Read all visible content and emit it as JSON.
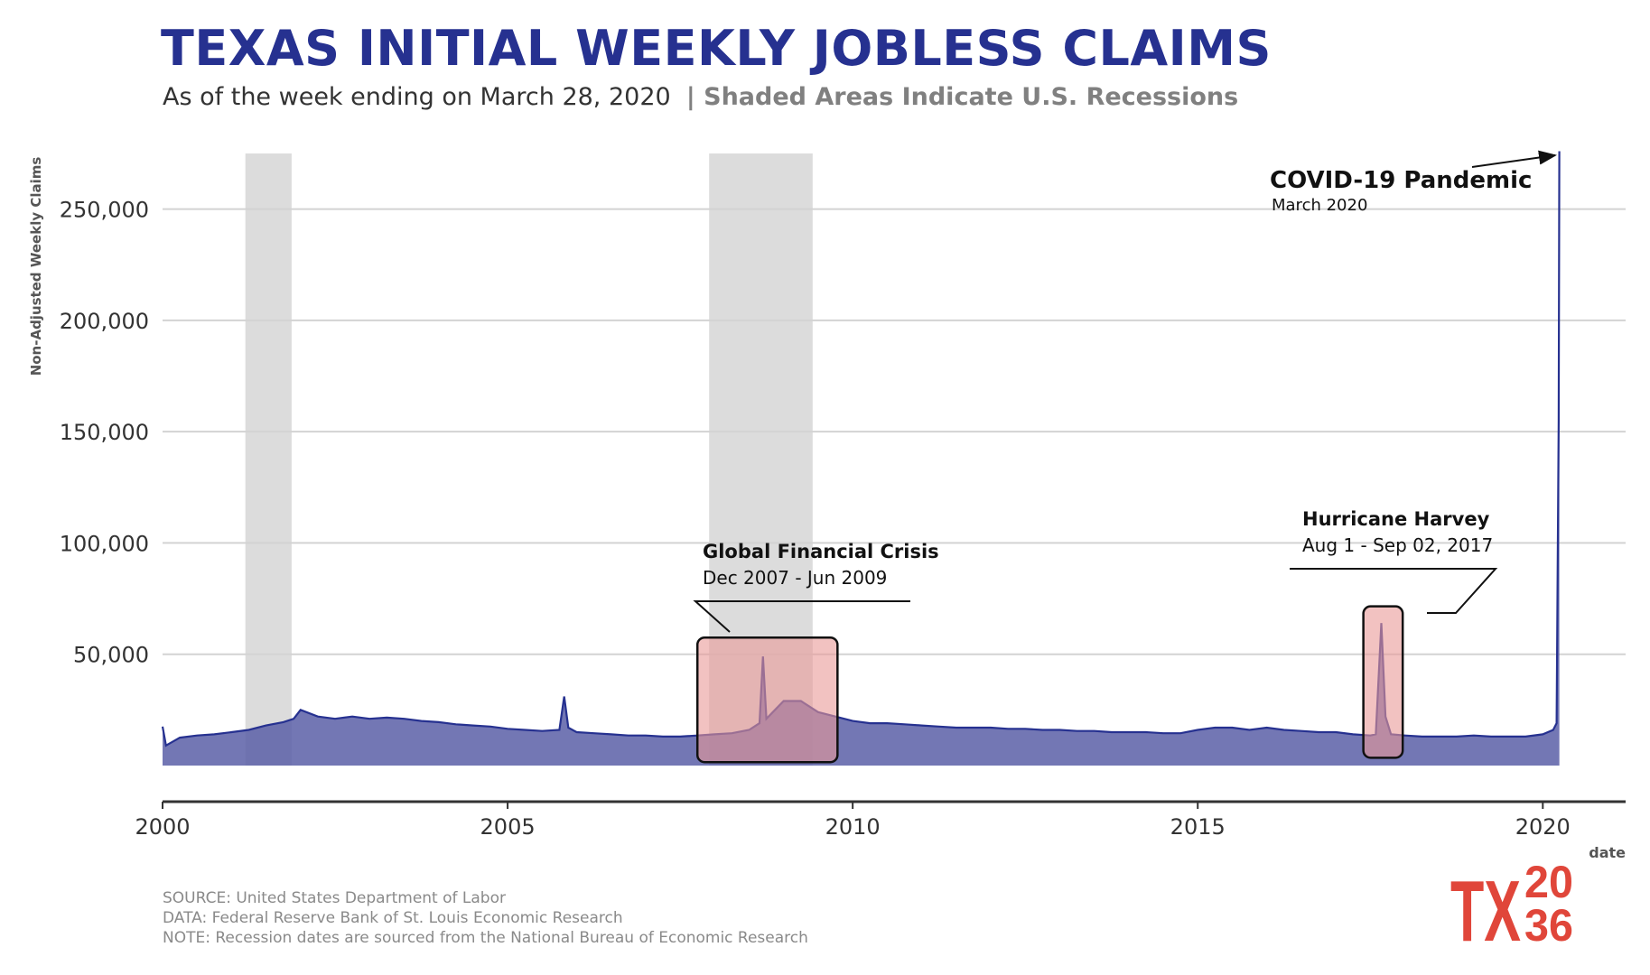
{
  "title": "TEXAS INITIAL WEEKLY JOBLESS CLAIMS",
  "subtitle": {
    "main": "As of the week ending on March 28, 2020",
    "separator_note": "| Shaded Areas Indicate U.S. Recessions"
  },
  "footer": {
    "source": "SOURCE: United States Department of Labor",
    "data": "DATA: Federal Reserve Bank of St. Louis Economic Research",
    "note": "NOTE: Recession dates are sourced from the National Bureau of Economic Research"
  },
  "logo": {
    "text_left": "TX",
    "text_top": "20",
    "text_bottom": "36",
    "color": "#e0463a"
  },
  "chart_data": {
    "type": "area",
    "xlabel": "date",
    "ylabel": "Non-Adjusted Weekly Claims",
    "xlim": [
      2000,
      2021.2
    ],
    "ylim": [
      -13000,
      275000
    ],
    "x_ticks": [
      2000,
      2005,
      2010,
      2015,
      2020
    ],
    "x_tick_labels": [
      "2000",
      "2005",
      "2010",
      "2015",
      "2020"
    ],
    "y_ticks": [
      50000,
      100000,
      150000,
      200000,
      250000
    ],
    "y_tick_labels": [
      "50,000",
      "100,000",
      "150,000",
      "200,000",
      "250,000"
    ],
    "grid": true,
    "colors": {
      "line": "#263190",
      "fill": "#5a5fa7",
      "recession": "#dcdcdc",
      "highlight": "#e99a98",
      "title": "#263190"
    },
    "recessions": [
      {
        "start": 2001.2,
        "end": 2001.87
      },
      {
        "start": 2007.92,
        "end": 2009.42
      }
    ],
    "series": [
      {
        "points": [
          [
            2000.0,
            17500
          ],
          [
            2000.05,
            9000
          ],
          [
            2000.25,
            12500
          ],
          [
            2000.5,
            13500
          ],
          [
            2000.75,
            14000
          ],
          [
            2001.0,
            15000
          ],
          [
            2001.25,
            16000
          ],
          [
            2001.5,
            18000
          ],
          [
            2001.75,
            19500
          ],
          [
            2001.9,
            21000
          ],
          [
            2002.0,
            25000
          ],
          [
            2002.25,
            22000
          ],
          [
            2002.5,
            21000
          ],
          [
            2002.75,
            22000
          ],
          [
            2003.0,
            21000
          ],
          [
            2003.25,
            21500
          ],
          [
            2003.5,
            21000
          ],
          [
            2003.75,
            20000
          ],
          [
            2004.0,
            19500
          ],
          [
            2004.25,
            18500
          ],
          [
            2004.5,
            18000
          ],
          [
            2004.75,
            17500
          ],
          [
            2005.0,
            16500
          ],
          [
            2005.25,
            16000
          ],
          [
            2005.5,
            15500
          ],
          [
            2005.75,
            16000
          ],
          [
            2005.82,
            31000
          ],
          [
            2005.88,
            17000
          ],
          [
            2006.0,
            15000
          ],
          [
            2006.25,
            14500
          ],
          [
            2006.5,
            14000
          ],
          [
            2006.75,
            13500
          ],
          [
            2007.0,
            13500
          ],
          [
            2007.25,
            13000
          ],
          [
            2007.5,
            13000
          ],
          [
            2007.75,
            13500
          ],
          [
            2008.0,
            14000
          ],
          [
            2008.25,
            14500
          ],
          [
            2008.5,
            16000
          ],
          [
            2008.65,
            19000
          ],
          [
            2008.7,
            49000
          ],
          [
            2008.75,
            21000
          ],
          [
            2009.0,
            29000
          ],
          [
            2009.25,
            29000
          ],
          [
            2009.5,
            24000
          ],
          [
            2009.75,
            22000
          ],
          [
            2010.0,
            20000
          ],
          [
            2010.25,
            19000
          ],
          [
            2010.5,
            19000
          ],
          [
            2010.75,
            18500
          ],
          [
            2011.0,
            18000
          ],
          [
            2011.25,
            17500
          ],
          [
            2011.5,
            17000
          ],
          [
            2011.75,
            17000
          ],
          [
            2012.0,
            17000
          ],
          [
            2012.25,
            16500
          ],
          [
            2012.5,
            16500
          ],
          [
            2012.75,
            16000
          ],
          [
            2013.0,
            16000
          ],
          [
            2013.25,
            15500
          ],
          [
            2013.5,
            15500
          ],
          [
            2013.75,
            15000
          ],
          [
            2014.0,
            15000
          ],
          [
            2014.25,
            15000
          ],
          [
            2014.5,
            14500
          ],
          [
            2014.75,
            14500
          ],
          [
            2015.0,
            16000
          ],
          [
            2015.25,
            17000
          ],
          [
            2015.5,
            17000
          ],
          [
            2015.75,
            16000
          ],
          [
            2016.0,
            17000
          ],
          [
            2016.25,
            16000
          ],
          [
            2016.5,
            15500
          ],
          [
            2016.75,
            15000
          ],
          [
            2017.0,
            15000
          ],
          [
            2017.25,
            14000
          ],
          [
            2017.5,
            13500
          ],
          [
            2017.58,
            14000
          ],
          [
            2017.66,
            64000
          ],
          [
            2017.72,
            22000
          ],
          [
            2017.8,
            14000
          ],
          [
            2018.0,
            13500
          ],
          [
            2018.25,
            13000
          ],
          [
            2018.5,
            13000
          ],
          [
            2018.75,
            13000
          ],
          [
            2019.0,
            13500
          ],
          [
            2019.25,
            13000
          ],
          [
            2019.5,
            13000
          ],
          [
            2019.75,
            13000
          ],
          [
            2020.0,
            14000
          ],
          [
            2020.15,
            16000
          ],
          [
            2020.2,
            19000
          ],
          [
            2020.23,
            155000
          ],
          [
            2020.24,
            276000
          ]
        ]
      }
    ],
    "annotations": [
      {
        "id": "gfc",
        "title": "Global Financial Crisis",
        "subtitle": "Dec 2007 - Jun 2009",
        "box_x": [
          2007.75,
          2009.78
        ],
        "box_y": [
          1500,
          57500
        ]
      },
      {
        "id": "harvey",
        "title": "Hurricane Harvey",
        "subtitle": "Aug 1 - Sep 02, 2017",
        "box_x": [
          2017.4,
          2017.97
        ],
        "box_y": [
          3500,
          71500
        ]
      },
      {
        "id": "covid",
        "title": "COVID-19 Pandemic",
        "subtitle": "March 2020"
      }
    ]
  }
}
